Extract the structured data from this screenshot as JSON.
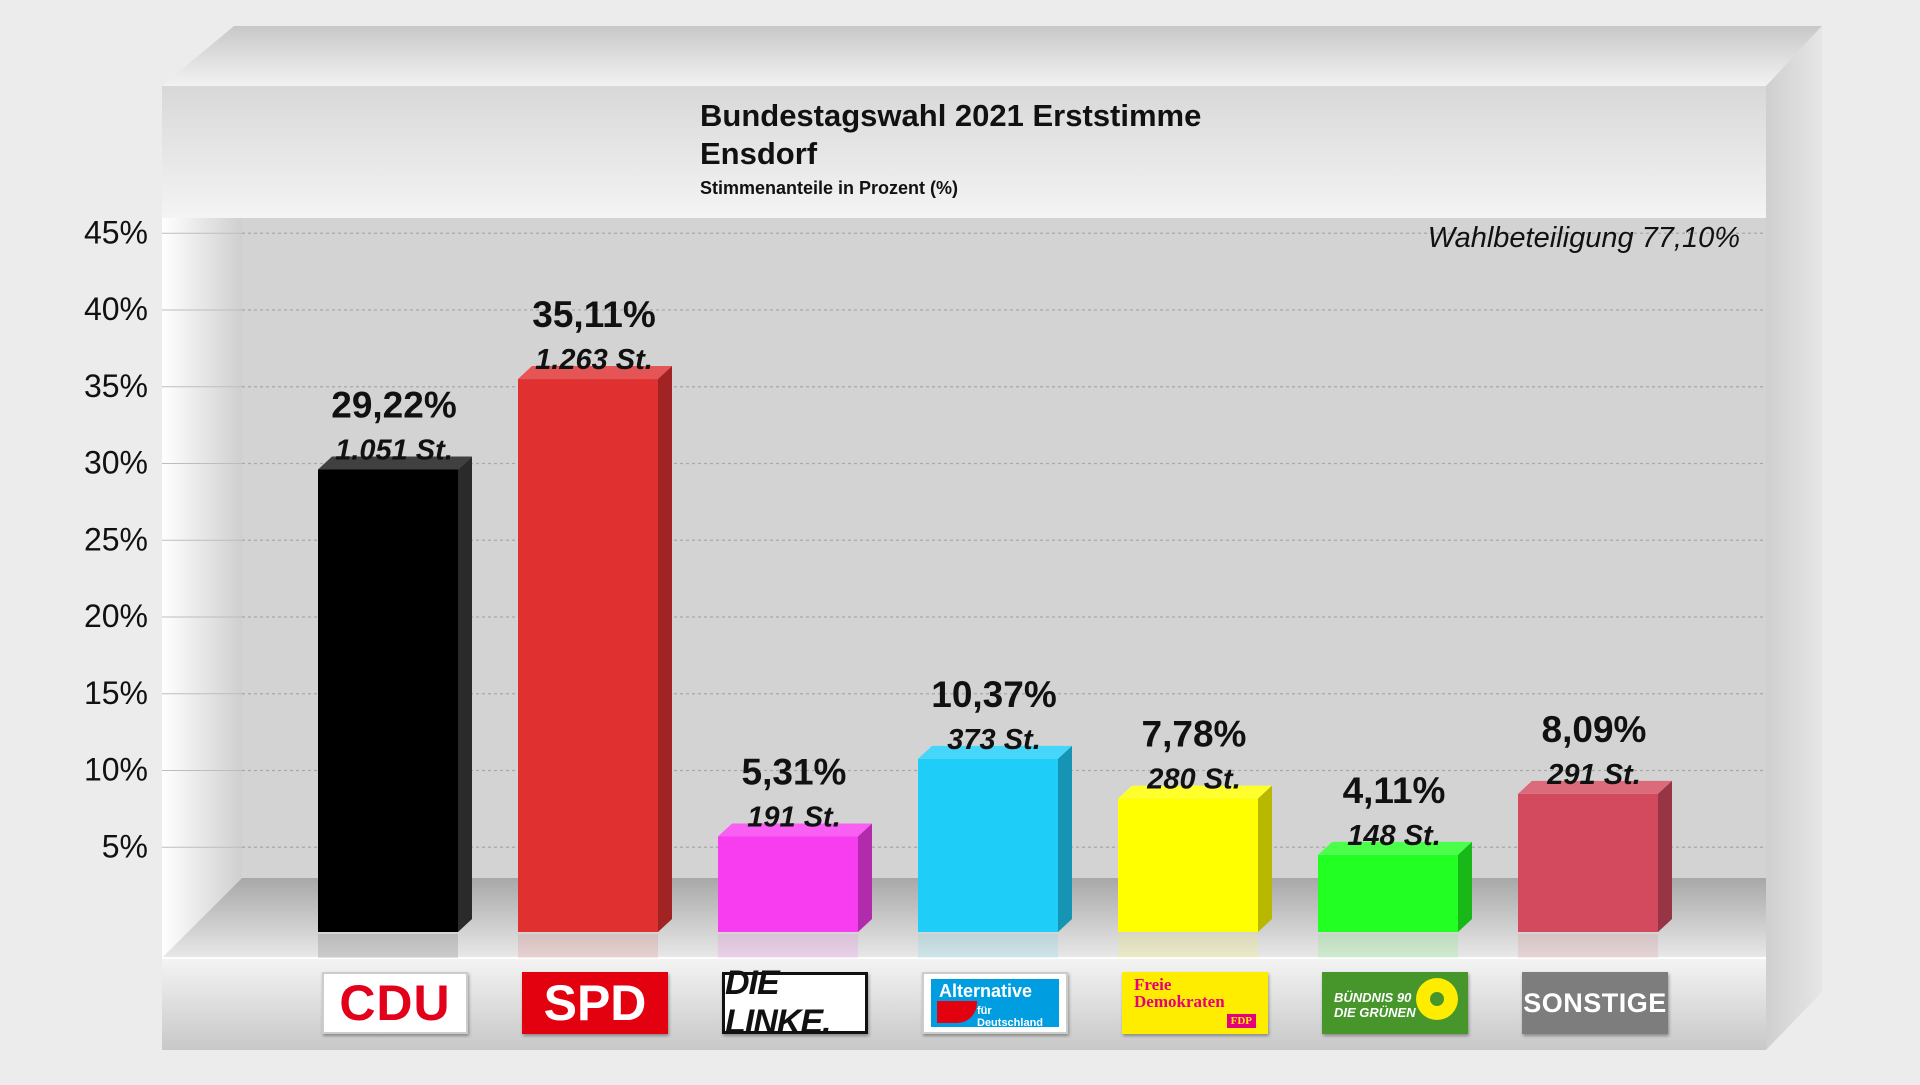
{
  "header": {
    "title": "Bundestagswahl 2021 Erststimme",
    "subtitle": "Ensdorf",
    "caption": "Stimmenanteile in Prozent (%)",
    "turnout_label": "Wahlbeteiligung 77,10%"
  },
  "colors": {
    "background": "#ececec",
    "panel": "#d9d9d9",
    "CDU": "#000000",
    "SPD": "#e03030",
    "LINKE": "#f83cf0",
    "AfD": "#1ecdf8",
    "FDP": "#ffff00",
    "GRUENE": "#22ff22",
    "SONSTIGE": "#d34a5e"
  },
  "logos": {
    "cdu": "CDU",
    "spd": "SPD",
    "linke": "DIE LINKE.",
    "afd_line1": "Alternative",
    "afd_line2": "für Deutschland",
    "fdp_line1": "Freie",
    "fdp_line2": "Demokraten",
    "fdp_badge": "FDP",
    "gruene_line1": "BÜNDNIS 90",
    "gruene_line2": "DIE GRÜNEN",
    "sonstige": "SONSTIGE"
  },
  "chart_data": {
    "type": "bar",
    "title": "Bundestagswahl 2021 Erststimme",
    "subtitle": "Ensdorf",
    "ylabel": "Stimmenanteile in Prozent (%)",
    "ylim": [
      0,
      45
    ],
    "yticks": [
      "5%",
      "10%",
      "15%",
      "20%",
      "25%",
      "30%",
      "35%",
      "40%",
      "45%"
    ],
    "grid": true,
    "legend": "none",
    "categories": [
      "CDU",
      "SPD",
      "DIE LINKE",
      "AfD",
      "FDP",
      "GRÜNE",
      "SONSTIGE"
    ],
    "values": [
      29.22,
      35.11,
      5.31,
      10.37,
      7.78,
      4.11,
      8.09
    ],
    "percent_labels": [
      "29,22%",
      "35,11%",
      "5,31%",
      "10,37%",
      "7,78%",
      "4,11%",
      "8,09%"
    ],
    "vote_labels": [
      "1.051 St.",
      "1.263 St.",
      "191 St.",
      "373 St.",
      "280 St.",
      "148 St.",
      "291 St."
    ]
  }
}
